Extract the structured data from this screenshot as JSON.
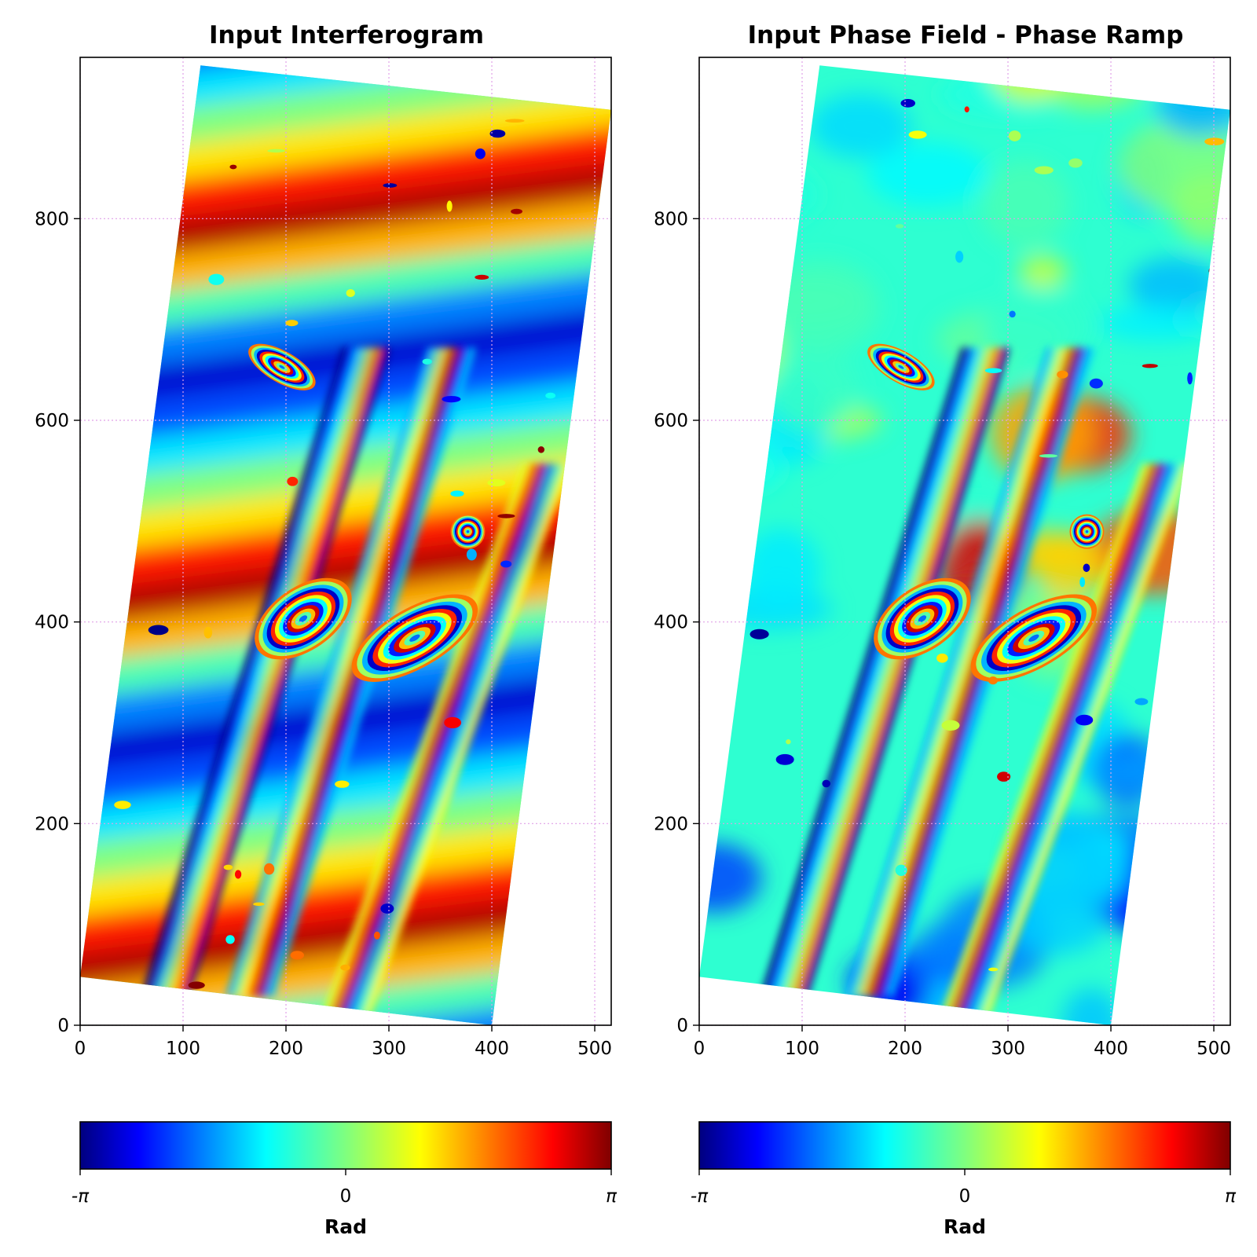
{
  "panels": [
    {
      "title": "Input Interferogram",
      "colorbar": {
        "ticks": [
          "-π",
          "0",
          "π"
        ],
        "label": "Rad"
      }
    },
    {
      "title": "Input Phase Field - Phase Ramp",
      "colorbar": {
        "ticks": [
          "-π",
          "0",
          "π"
        ],
        "label": "Rad"
      }
    }
  ],
  "chart_data": [
    {
      "type": "heatmap",
      "title": "Input Interferogram",
      "xlabel": "",
      "ylabel": "",
      "xlim": [
        0,
        516
      ],
      "ylim": [
        0,
        960
      ],
      "x_ticks": [
        0,
        100,
        200,
        300,
        400,
        500
      ],
      "y_ticks": [
        0,
        200,
        400,
        600,
        800
      ],
      "grid": true,
      "colormap": "jet",
      "colormap_colors": [
        "#00007f",
        "#0000ff",
        "#007fff",
        "#00ffff",
        "#7fff7f",
        "#ffff00",
        "#ff7f00",
        "#ff0000",
        "#7f0000"
      ],
      "value_range": [
        -3.1416,
        3.1416
      ],
      "colorbar_label": "Rad",
      "colorbar_ticks": [
        "-π",
        "0",
        "π"
      ],
      "footprint_corners": [
        [
          117,
          952
        ],
        [
          516,
          908
        ],
        [
          400,
          0
        ],
        [
          0,
          48
        ]
      ]
    },
    {
      "type": "heatmap",
      "title": "Input Phase Field - Phase Ramp",
      "xlabel": "",
      "ylabel": "",
      "xlim": [
        0,
        516
      ],
      "ylim": [
        0,
        960
      ],
      "x_ticks": [
        0,
        100,
        200,
        300,
        400,
        500
      ],
      "y_ticks": [
        0,
        200,
        400,
        600,
        800
      ],
      "grid": true,
      "colormap": "jet",
      "colormap_colors": [
        "#00007f",
        "#0000ff",
        "#007fff",
        "#00ffff",
        "#7fff7f",
        "#ffff00",
        "#ff7f00",
        "#ff0000",
        "#7f0000"
      ],
      "value_range": [
        -3.1416,
        3.1416
      ],
      "colorbar_label": "Rad",
      "colorbar_ticks": [
        "-π",
        "0",
        "π"
      ],
      "footprint_corners": [
        [
          117,
          952
        ],
        [
          516,
          908
        ],
        [
          400,
          0
        ],
        [
          0,
          48
        ]
      ]
    }
  ]
}
